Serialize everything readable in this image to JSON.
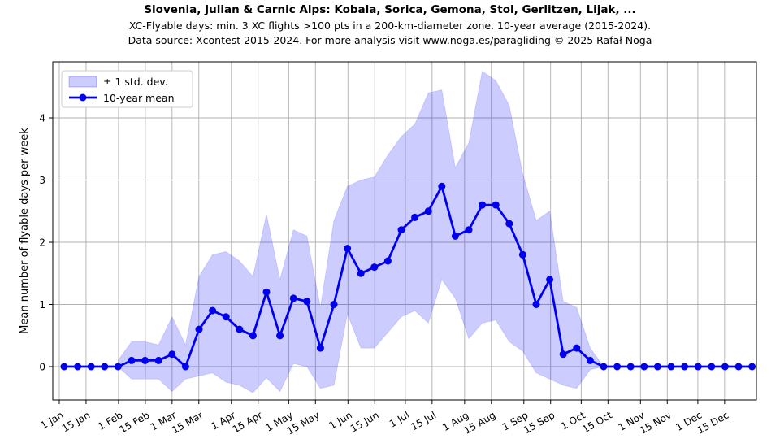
{
  "header": {
    "title": "Slovenia, Julian & Carnic Alps: Kobala, Sorica, Gemona, Stol, Gerlitzen, Lijak, ...",
    "subtitle": "XC-Flyable days: min. 3 XC flights >100 pts in a 200-km-diameter zone. 10-year average (2015-2024).",
    "source_note": "Data source: Xcontest 2015-2024. For more analysis visit www.noga.es/paragliding © 2025 Rafał Noga"
  },
  "legend": {
    "std_label": "± 1 std. dev.",
    "mean_label": "10-year mean"
  },
  "axes": {
    "ylabel": "Mean number of flyable days per week",
    "y_ticks": [
      0,
      1,
      2,
      3,
      4
    ],
    "x_tick_labels": [
      "1 Jan",
      "15 Jan",
      "1 Feb",
      "15 Feb",
      "1 Mar",
      "15 Mar",
      "1 Apr",
      "15 Apr",
      "1 May",
      "15 May",
      "1 Jun",
      "15 Jun",
      "1 Jul",
      "15 Jul",
      "1 Aug",
      "15 Aug",
      "1 Sep",
      "15 Sep",
      "1 Oct",
      "15 Oct",
      "1 Nov",
      "15 Nov",
      "1 Dec",
      "15 Dec"
    ],
    "x_tick_days": [
      0,
      14,
      31,
      45,
      59,
      73,
      90,
      104,
      120,
      134,
      151,
      165,
      181,
      195,
      212,
      226,
      243,
      257,
      273,
      287,
      304,
      318,
      334,
      348
    ]
  },
  "colors": {
    "line": "#0000ee",
    "band_fill": "#0000ff",
    "band_opacity": 0.2,
    "grid": "#b0b0b0",
    "spine": "#000000",
    "legend_border": "#cccccc"
  },
  "chart_data": {
    "type": "line",
    "title": "Slovenia, Julian & Carnic Alps: Kobala, Sorica, Gemona, Stol, Gerlitzen, Lijak, ...",
    "subtitle": "XC-Flyable days: min. 3 XC flights >100 pts in a 200-km-diameter zone. 10-year average (2015-2024).",
    "source_note": "Data source: Xcontest 2015-2024. For more analysis visit www.noga.es/paragliding © 2025 Rafał Noga",
    "xlabel": "",
    "ylabel": "Mean number of flyable days per week",
    "x_description": "52 weekly points across the year, Jan through Dec",
    "x_weeks": [
      0,
      1,
      2,
      3,
      4,
      5,
      6,
      7,
      8,
      9,
      10,
      11,
      12,
      13,
      14,
      15,
      16,
      17,
      18,
      19,
      20,
      21,
      22,
      23,
      24,
      25,
      26,
      27,
      28,
      29,
      30,
      31,
      32,
      33,
      34,
      35,
      36,
      37,
      38,
      39,
      40,
      41,
      42,
      43,
      44,
      45,
      46,
      47,
      48,
      49,
      50,
      51
    ],
    "ylim": [
      -0.55,
      4.9
    ],
    "grid": true,
    "legend_position": "upper-left",
    "series": [
      {
        "name": "10-year mean",
        "values": [
          0,
          0,
          0,
          0,
          0,
          0.1,
          0.1,
          0.1,
          0.2,
          0,
          0.6,
          0.9,
          0.8,
          0.6,
          0.5,
          1.2,
          0.5,
          1.1,
          1.05,
          0.3,
          1.0,
          1.9,
          1.5,
          1.6,
          1.7,
          2.2,
          2.4,
          2.5,
          2.9,
          2.1,
          2.2,
          2.6,
          2.6,
          2.3,
          1.8,
          1.0,
          1.4,
          0.2,
          0.3,
          0.1,
          0,
          0,
          0,
          0,
          0,
          0,
          0,
          0,
          0,
          0,
          0,
          0
        ]
      },
      {
        "name": "band upper (+1 std. dev.)",
        "values": [
          0,
          0,
          0,
          0,
          0.1,
          0.4,
          0.4,
          0.35,
          0.8,
          0.35,
          1.45,
          1.8,
          1.85,
          1.7,
          1.45,
          2.45,
          1.4,
          2.2,
          2.1,
          0.95,
          2.35,
          2.9,
          3.0,
          3.05,
          3.4,
          3.7,
          3.9,
          4.4,
          4.45,
          3.2,
          3.6,
          4.75,
          4.6,
          4.2,
          3.1,
          2.35,
          2.5,
          1.05,
          0.95,
          0.3,
          0,
          0,
          0,
          0,
          0,
          0,
          0,
          0,
          0,
          0,
          0,
          0
        ]
      },
      {
        "name": "band lower (-1 std. dev.)",
        "values": [
          0,
          0,
          0,
          0,
          0,
          -0.2,
          -0.2,
          -0.2,
          -0.4,
          -0.2,
          -0.15,
          -0.1,
          -0.25,
          -0.3,
          -0.42,
          -0.18,
          -0.4,
          0.05,
          0,
          -0.35,
          -0.3,
          0.85,
          0.3,
          0.3,
          0.55,
          0.8,
          0.9,
          0.7,
          1.4,
          1.1,
          0.45,
          0.7,
          0.75,
          0.4,
          0.25,
          -0.1,
          -0.2,
          -0.3,
          -0.35,
          -0.05,
          0,
          0,
          0,
          0,
          0,
          0,
          0,
          0,
          0,
          0,
          0,
          0
        ]
      }
    ]
  }
}
